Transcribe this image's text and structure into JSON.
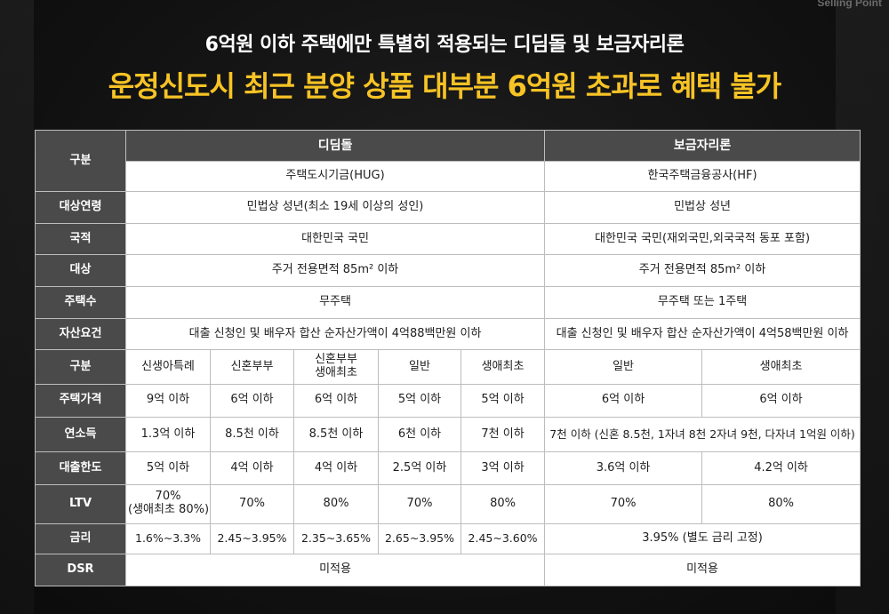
{
  "brand": "Selling Point",
  "subtitle": "6억원 이하 주택에만 특별히 적용되는 디딤돌 및 보금자리론",
  "headline": "운정신도시 최근 분양 상품 대부분 6억원 초과로 혜택 불가",
  "table": {
    "group_header": "구분",
    "didimdol": {
      "title": "디딤돌",
      "agency": "주택도시기금(HUG)"
    },
    "bogeum": {
      "title": "보금자리론",
      "agency": "한국주택금융공사(HF)"
    },
    "rows": {
      "age": {
        "label": "대상연령",
        "didimdol": "민법상 성년(최소 19세 이상의 성인)",
        "bogeum": "민법상 성년"
      },
      "nationality": {
        "label": "국적",
        "didimdol": "대한민국 국민",
        "bogeum": "대한민국 국민(재외국민,외국국적 동포 포함)"
      },
      "target": {
        "label": "대상",
        "didimdol": "주거 전용면적 85m² 이하",
        "bogeum": "주거 전용면적 85m² 이하"
      },
      "houses": {
        "label": "주택수",
        "didimdol": "무주택",
        "bogeum": "무주택 또는 1주택"
      },
      "assets": {
        "label": "자산요건",
        "didimdol": "대출 신청인 및 배우자 합산 순자산가액이 4억88백만원 이하",
        "bogeum": "대출 신청인 및 배우자 합산 순자산가액이 4억58백만원 이하"
      }
    },
    "sub_header": {
      "label": "구분",
      "d1": "신생아특례",
      "d2": "신혼부부",
      "d3_line1": "신혼부부",
      "d3_line2": "생애최초",
      "d4": "일반",
      "d5": "생애최초",
      "b1": "일반",
      "b2": "생애최초"
    },
    "price": {
      "label": "주택가격",
      "d1": "9억 이하",
      "d2": "6억 이하",
      "d3": "6억 이하",
      "d4": "5억 이하",
      "d5": "5억 이하",
      "b1": "6억 이하",
      "b2": "6억 이하"
    },
    "income": {
      "label": "연소득",
      "d1": "1.3억 이하",
      "d2": "8.5천 이하",
      "d3": "8.5천 이하",
      "d4": "6천 이하",
      "d5": "7천 이하",
      "b": "7천 이하 (신혼 8.5천, 1자녀 8천 2자녀 9천, 다자녀 1억원 이하)"
    },
    "limit": {
      "label": "대출한도",
      "d1": "5억 이하",
      "d2": "4억 이하",
      "d3": "4억 이하",
      "d4": "2.5억 이하",
      "d5": "3억 이하",
      "b1": "3.6억 이하",
      "b2": "4.2억 이하"
    },
    "ltv": {
      "label": "LTV",
      "d1_line1": "70%",
      "d1_line2": "(생애최초 80%)",
      "d2": "70%",
      "d3": "80%",
      "d4": "70%",
      "d5": "80%",
      "b1": "70%",
      "b2": "80%"
    },
    "rate": {
      "label": "금리",
      "d1": "1.6%~3.3%",
      "d2": "2.45~3.95%",
      "d3": "2.35~3.65%",
      "d4": "2.65~3.95%",
      "d5": "2.45~3.60%",
      "b": "3.95% (별도 금리 고정)"
    },
    "dsr": {
      "label": "DSR",
      "didimdol": "미적용",
      "bogeum": "미적용"
    }
  }
}
